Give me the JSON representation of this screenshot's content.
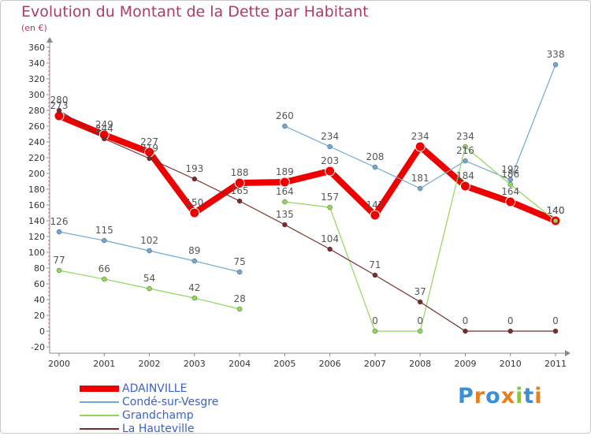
{
  "title": "Evolution du Montant de la Dette par Habitant",
  "subtitle": "(en €)",
  "logo": {
    "letters": [
      "P",
      "r",
      "o",
      "x",
      "i",
      "t",
      "i"
    ],
    "colors": [
      "#3b8fd4",
      "#e87d22",
      "#3b8fd4",
      "#e87d22",
      "#8cc63f",
      "#3b8fd4",
      "#e87d22"
    ]
  },
  "chart_data": {
    "type": "line",
    "title": "Evolution du Montant de la Dette par Habitant",
    "subtitle": "(en €)",
    "xlabel": "",
    "ylabel": "",
    "categories": [
      "2000",
      "2001",
      "2002",
      "2003",
      "2004",
      "2005",
      "2006",
      "2007",
      "2008",
      "2009",
      "2010",
      "2011"
    ],
    "ylim": [
      -20,
      360
    ],
    "yticks": [
      -20,
      0,
      20,
      40,
      60,
      80,
      100,
      120,
      140,
      160,
      180,
      200,
      220,
      240,
      260,
      280,
      300,
      320,
      340,
      360
    ],
    "grid": false,
    "legend_position": "bottom-left",
    "series": [
      {
        "name": "ADAINVILLE",
        "color": "#ee0000",
        "emphasis": true,
        "values": [
          273,
          249,
          227,
          150,
          188,
          189,
          203,
          147,
          234,
          184,
          164,
          140
        ]
      },
      {
        "name": "Condé-sur-Vesgre",
        "color": "#6fa8d6",
        "values": [
          126,
          115,
          102,
          89,
          75,
          260,
          234,
          208,
          181,
          216,
          192,
          338
        ]
      },
      {
        "name": "Grandchamp",
        "color": "#8fd85a",
        "values": [
          77,
          66,
          54,
          42,
          28,
          164,
          157,
          0,
          0,
          234,
          186,
          140
        ]
      },
      {
        "name": "La Hauteville",
        "color": "#7a2b2b",
        "values": [
          280,
          244,
          219,
          193,
          165,
          135,
          104,
          71,
          37,
          0,
          0,
          0
        ]
      }
    ],
    "segments_break_after": {
      "Condé-sur-Vesgre": [
        4
      ],
      "Grandchamp": [
        4
      ]
    }
  }
}
